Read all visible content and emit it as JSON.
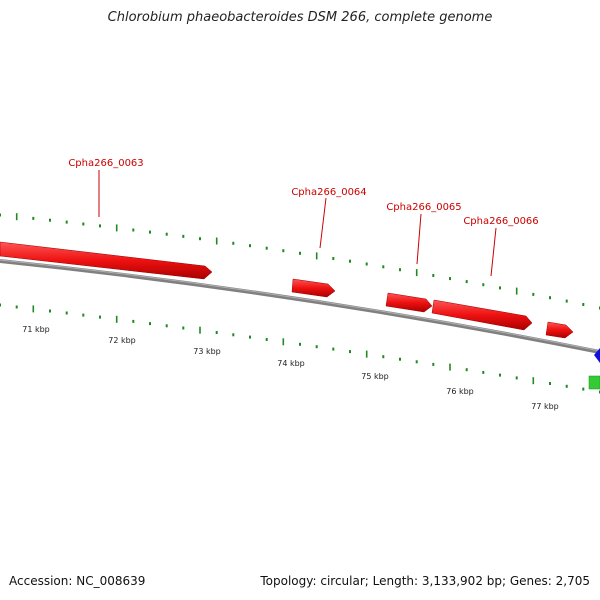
{
  "title": "Chlorobium phaeobacteroides DSM 266, complete genome",
  "footer": {
    "accession": "Accession: NC_008639",
    "topology": "Topology: circular; Length: 3,133,902 bp; Genes: 2,705"
  },
  "colors": {
    "gene_forward": "#ee1111",
    "backbone": "#808080",
    "tick": "#228822",
    "label": "#cc0000",
    "blue_feature": "#1010dd",
    "green_feature": "#33cc33"
  },
  "scale_labels": [
    "71 kbp",
    "72 kbp",
    "73 kbp",
    "74 kbp",
    "75 kbp",
    "76 kbp",
    "77 kbp"
  ],
  "genes": [
    {
      "label": "Cpha266_0063"
    },
    {
      "label": "Cpha266_0064"
    },
    {
      "label": "Cpha266_0065"
    },
    {
      "label": "Cpha266_0066"
    }
  ]
}
